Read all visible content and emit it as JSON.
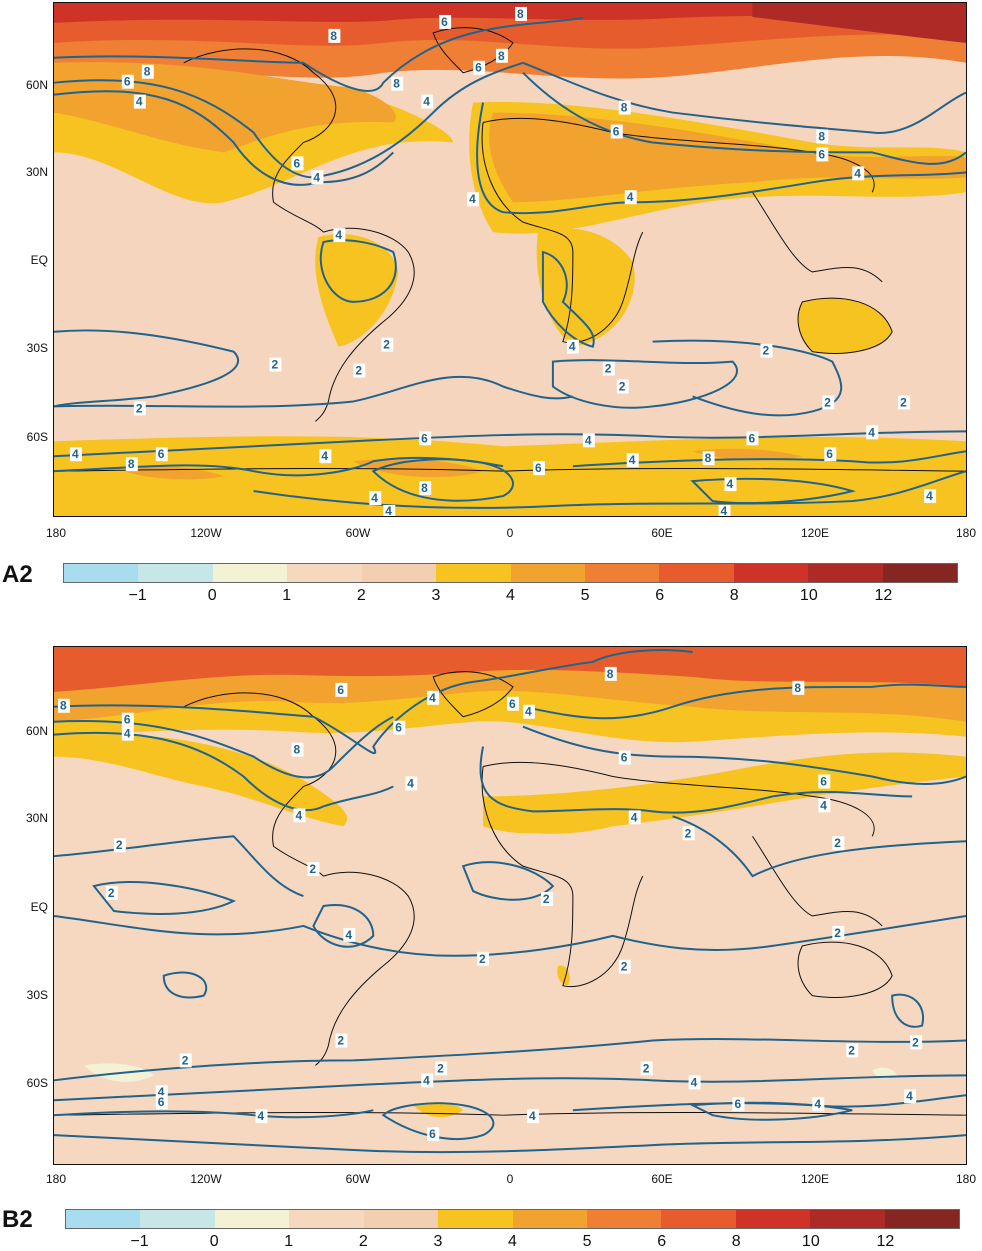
{
  "panels": [
    {
      "id": "A2",
      "label": "A2",
      "contour_labels": [
        "2",
        "4",
        "6",
        "8"
      ]
    },
    {
      "id": "B2",
      "label": "B2",
      "contour_labels": [
        "2",
        "4",
        "6",
        "8"
      ]
    }
  ],
  "axes": {
    "lat_labels": [
      "60N",
      "30N",
      "EQ",
      "30S",
      "60S"
    ],
    "lon_labels": [
      "180",
      "120W",
      "60W",
      "0",
      "60E",
      "120E",
      "180"
    ]
  },
  "colorbar": {
    "tick_labels": [
      "−1",
      "0",
      "1",
      "2",
      "3",
      "4",
      "5",
      "6",
      "8",
      "10",
      "12"
    ],
    "colors": [
      "#a9dcef",
      "#c7e6e8",
      "#f3f2d4",
      "#f6d8be",
      "#f3cfb2",
      "#f7c320",
      "#f2a22e",
      "#ee7f34",
      "#e65c2d",
      "#cf3328",
      "#ad2a26",
      "#862622"
    ]
  },
  "contour_color": "#20638c",
  "coastline_color": "#111111"
}
